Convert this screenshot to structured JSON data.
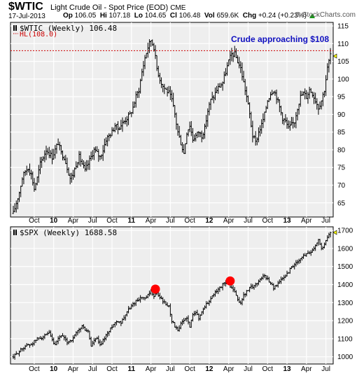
{
  "header": {
    "symbol": "$WTIC",
    "name": "Light Crude Oil - Spot Price (EOD)",
    "exchange": "CME",
    "date": "17-Jul-2013",
    "open_label": "Op",
    "open": "106.05",
    "high_label": "Hi",
    "high": "107.18",
    "low_label": "Lo",
    "low": "104.65",
    "close_label": "Cl",
    "close": "106.48",
    "vol_label": "Vol",
    "vol": "659.6K",
    "chg_label": "Chg",
    "chg": "+0.24 (+0.23%)",
    "source": "© StockCharts.com",
    "up_color": "#1a9a1a"
  },
  "colors": {
    "panel_bg": "#eeeeee",
    "grid": "#ffffff",
    "bar": "#000000",
    "hline": "#cc0000",
    "annotation": "#1010c0",
    "marker": "#ff0000"
  },
  "chart_data": [
    {
      "type": "ohlc-bar",
      "legend": "$WTIC (Weekly) 106.48",
      "hline_label": "HL(108.0)",
      "hline_value": 108,
      "annotation": "Crude approaching $108",
      "ylim": [
        61,
        116
      ],
      "yticks": [
        "65",
        "70",
        "75",
        "80",
        "85",
        "90",
        "95",
        "100",
        "105",
        "110",
        "115"
      ],
      "xticks": [
        "Oct",
        "10",
        "Apr",
        "Jul",
        "Oct",
        "11",
        "Apr",
        "Jul",
        "Oct",
        "12",
        "Apr",
        "Jul",
        "Oct",
        "13",
        "Apr",
        "Jul"
      ],
      "xtick_bold": [
        false,
        true,
        false,
        false,
        false,
        true,
        false,
        false,
        false,
        true,
        false,
        false,
        false,
        true,
        false,
        false
      ],
      "xtick_weeks": [
        14,
        27,
        40,
        53,
        66,
        79,
        92,
        105,
        118,
        131,
        144,
        157,
        170,
        183,
        196,
        209
      ],
      "total_weeks": 212,
      "anchors": [
        [
          0,
          62
        ],
        [
          2,
          65
        ],
        [
          4,
          68
        ],
        [
          6,
          72
        ],
        [
          8,
          74
        ],
        [
          10,
          75
        ],
        [
          12,
          73
        ],
        [
          14,
          69
        ],
        [
          16,
          72
        ],
        [
          18,
          76
        ],
        [
          20,
          78
        ],
        [
          22,
          80
        ],
        [
          24,
          79
        ],
        [
          26,
          78
        ],
        [
          28,
          80
        ],
        [
          30,
          82
        ],
        [
          32,
          79
        ],
        [
          34,
          78
        ],
        [
          36,
          75
        ],
        [
          38,
          72
        ],
        [
          40,
          73
        ],
        [
          42,
          76
        ],
        [
          44,
          78
        ],
        [
          46,
          76
        ],
        [
          48,
          74
        ],
        [
          50,
          76
        ],
        [
          52,
          78
        ],
        [
          54,
          80
        ],
        [
          56,
          79
        ],
        [
          58,
          78
        ],
        [
          60,
          80
        ],
        [
          62,
          83
        ],
        [
          64,
          84
        ],
        [
          66,
          85
        ],
        [
          68,
          87
        ],
        [
          70,
          86
        ],
        [
          72,
          87
        ],
        [
          74,
          88
        ],
        [
          76,
          89
        ],
        [
          78,
          90
        ],
        [
          80,
          92
        ],
        [
          82,
          95
        ],
        [
          84,
          97
        ],
        [
          86,
          102
        ],
        [
          88,
          106
        ],
        [
          90,
          109
        ],
        [
          92,
          111
        ],
        [
          94,
          109
        ],
        [
          96,
          103
        ],
        [
          98,
          100
        ],
        [
          100,
          98
        ],
        [
          102,
          97
        ],
        [
          104,
          96
        ],
        [
          106,
          94
        ],
        [
          108,
          90
        ],
        [
          110,
          85
        ],
        [
          112,
          82
        ],
        [
          114,
          79
        ],
        [
          116,
          85
        ],
        [
          118,
          87
        ],
        [
          120,
          83
        ],
        [
          122,
          84
        ],
        [
          124,
          85
        ],
        [
          126,
          84
        ],
        [
          128,
          86
        ],
        [
          130,
          91
        ],
        [
          132,
          94
        ],
        [
          134,
          95
        ],
        [
          136,
          97
        ],
        [
          138,
          98
        ],
        [
          140,
          99
        ],
        [
          142,
          102
        ],
        [
          144,
          105
        ],
        [
          146,
          107
        ],
        [
          148,
          107
        ],
        [
          150,
          105
        ],
        [
          152,
          103
        ],
        [
          154,
          99
        ],
        [
          156,
          95
        ],
        [
          158,
          90
        ],
        [
          160,
          84
        ],
        [
          162,
          82
        ],
        [
          164,
          85
        ],
        [
          166,
          87
        ],
        [
          168,
          90
        ],
        [
          170,
          94
        ],
        [
          172,
          96
        ],
        [
          174,
          97
        ],
        [
          176,
          95
        ],
        [
          178,
          92
        ],
        [
          180,
          89
        ],
        [
          182,
          88
        ],
        [
          184,
          86
        ],
        [
          186,
          87
        ],
        [
          188,
          88
        ],
        [
          190,
          92
        ],
        [
          192,
          95
        ],
        [
          194,
          96
        ],
        [
          196,
          95
        ],
        [
          198,
          97
        ],
        [
          200,
          96
        ],
        [
          202,
          94
        ],
        [
          204,
          92
        ],
        [
          206,
          94
        ],
        [
          208,
          97
        ],
        [
          210,
          103
        ],
        [
          212,
          107
        ]
      ],
      "last_close": 106.48
    },
    {
      "type": "ohlc-bar",
      "legend": "$SPX (Weekly) 1688.58",
      "ylim": [
        960,
        1720
      ],
      "yticks": [
        "1000",
        "1100",
        "1200",
        "1300",
        "1400",
        "1500",
        "1600",
        "1700"
      ],
      "xticks": [
        "Oct",
        "10",
        "Apr",
        "Jul",
        "Oct",
        "11",
        "Apr",
        "Jul",
        "Oct",
        "12",
        "Apr",
        "Jul",
        "Oct",
        "13",
        "Apr",
        "Jul"
      ],
      "xtick_bold": [
        false,
        true,
        false,
        false,
        false,
        true,
        false,
        false,
        false,
        true,
        false,
        false,
        false,
        true,
        false,
        false
      ],
      "xtick_weeks": [
        14,
        27,
        40,
        53,
        66,
        79,
        92,
        105,
        118,
        131,
        144,
        157,
        170,
        183,
        196,
        209
      ],
      "total_weeks": 212,
      "markers": [
        [
          95,
          1375
        ],
        [
          145,
          1420
        ]
      ],
      "anchors": [
        [
          0,
          1000
        ],
        [
          4,
          1030
        ],
        [
          8,
          1060
        ],
        [
          12,
          1070
        ],
        [
          16,
          1100
        ],
        [
          20,
          1110
        ],
        [
          24,
          1130
        ],
        [
          26,
          1090
        ],
        [
          28,
          1060
        ],
        [
          30,
          1100
        ],
        [
          32,
          1120
        ],
        [
          34,
          1100
        ],
        [
          36,
          1080
        ],
        [
          38,
          1090
        ],
        [
          40,
          1100
        ],
        [
          42,
          1130
        ],
        [
          44,
          1150
        ],
        [
          46,
          1170
        ],
        [
          48,
          1150
        ],
        [
          50,
          1140
        ],
        [
          52,
          1060
        ],
        [
          54,
          1090
        ],
        [
          56,
          1100
        ],
        [
          58,
          1060
        ],
        [
          60,
          1090
        ],
        [
          62,
          1120
        ],
        [
          64,
          1140
        ],
        [
          66,
          1170
        ],
        [
          68,
          1190
        ],
        [
          70,
          1200
        ],
        [
          72,
          1190
        ],
        [
          74,
          1220
        ],
        [
          76,
          1250
        ],
        [
          78,
          1270
        ],
        [
          80,
          1290
        ],
        [
          82,
          1310
        ],
        [
          84,
          1320
        ],
        [
          86,
          1330
        ],
        [
          88,
          1320
        ],
        [
          90,
          1340
        ],
        [
          92,
          1360
        ],
        [
          94,
          1340
        ],
        [
          96,
          1350
        ],
        [
          98,
          1330
        ],
        [
          100,
          1310
        ],
        [
          102,
          1290
        ],
        [
          104,
          1280
        ],
        [
          106,
          1200
        ],
        [
          108,
          1170
        ],
        [
          110,
          1140
        ],
        [
          112,
          1180
        ],
        [
          114,
          1200
        ],
        [
          116,
          1220
        ],
        [
          118,
          1160
        ],
        [
          120,
          1240
        ],
        [
          122,
          1250
        ],
        [
          124,
          1210
        ],
        [
          126,
          1250
        ],
        [
          128,
          1280
        ],
        [
          130,
          1300
        ],
        [
          132,
          1320
        ],
        [
          134,
          1350
        ],
        [
          136,
          1360
        ],
        [
          138,
          1380
        ],
        [
          140,
          1400
        ],
        [
          142,
          1410
        ],
        [
          144,
          1400
        ],
        [
          146,
          1380
        ],
        [
          148,
          1360
        ],
        [
          150,
          1310
        ],
        [
          152,
          1300
        ],
        [
          154,
          1340
        ],
        [
          156,
          1360
        ],
        [
          158,
          1380
        ],
        [
          160,
          1390
        ],
        [
          162,
          1400
        ],
        [
          164,
          1420
        ],
        [
          166,
          1440
        ],
        [
          168,
          1450
        ],
        [
          170,
          1430
        ],
        [
          172,
          1410
        ],
        [
          174,
          1380
        ],
        [
          176,
          1400
        ],
        [
          178,
          1420
        ],
        [
          180,
          1430
        ],
        [
          182,
          1450
        ],
        [
          184,
          1470
        ],
        [
          186,
          1500
        ],
        [
          188,
          1510
        ],
        [
          190,
          1520
        ],
        [
          192,
          1540
        ],
        [
          194,
          1560
        ],
        [
          196,
          1570
        ],
        [
          198,
          1580
        ],
        [
          200,
          1590
        ],
        [
          202,
          1620
        ],
        [
          204,
          1650
        ],
        [
          206,
          1600
        ],
        [
          208,
          1620
        ],
        [
          210,
          1660
        ],
        [
          212,
          1690
        ]
      ],
      "last_close": 1688.58
    }
  ]
}
